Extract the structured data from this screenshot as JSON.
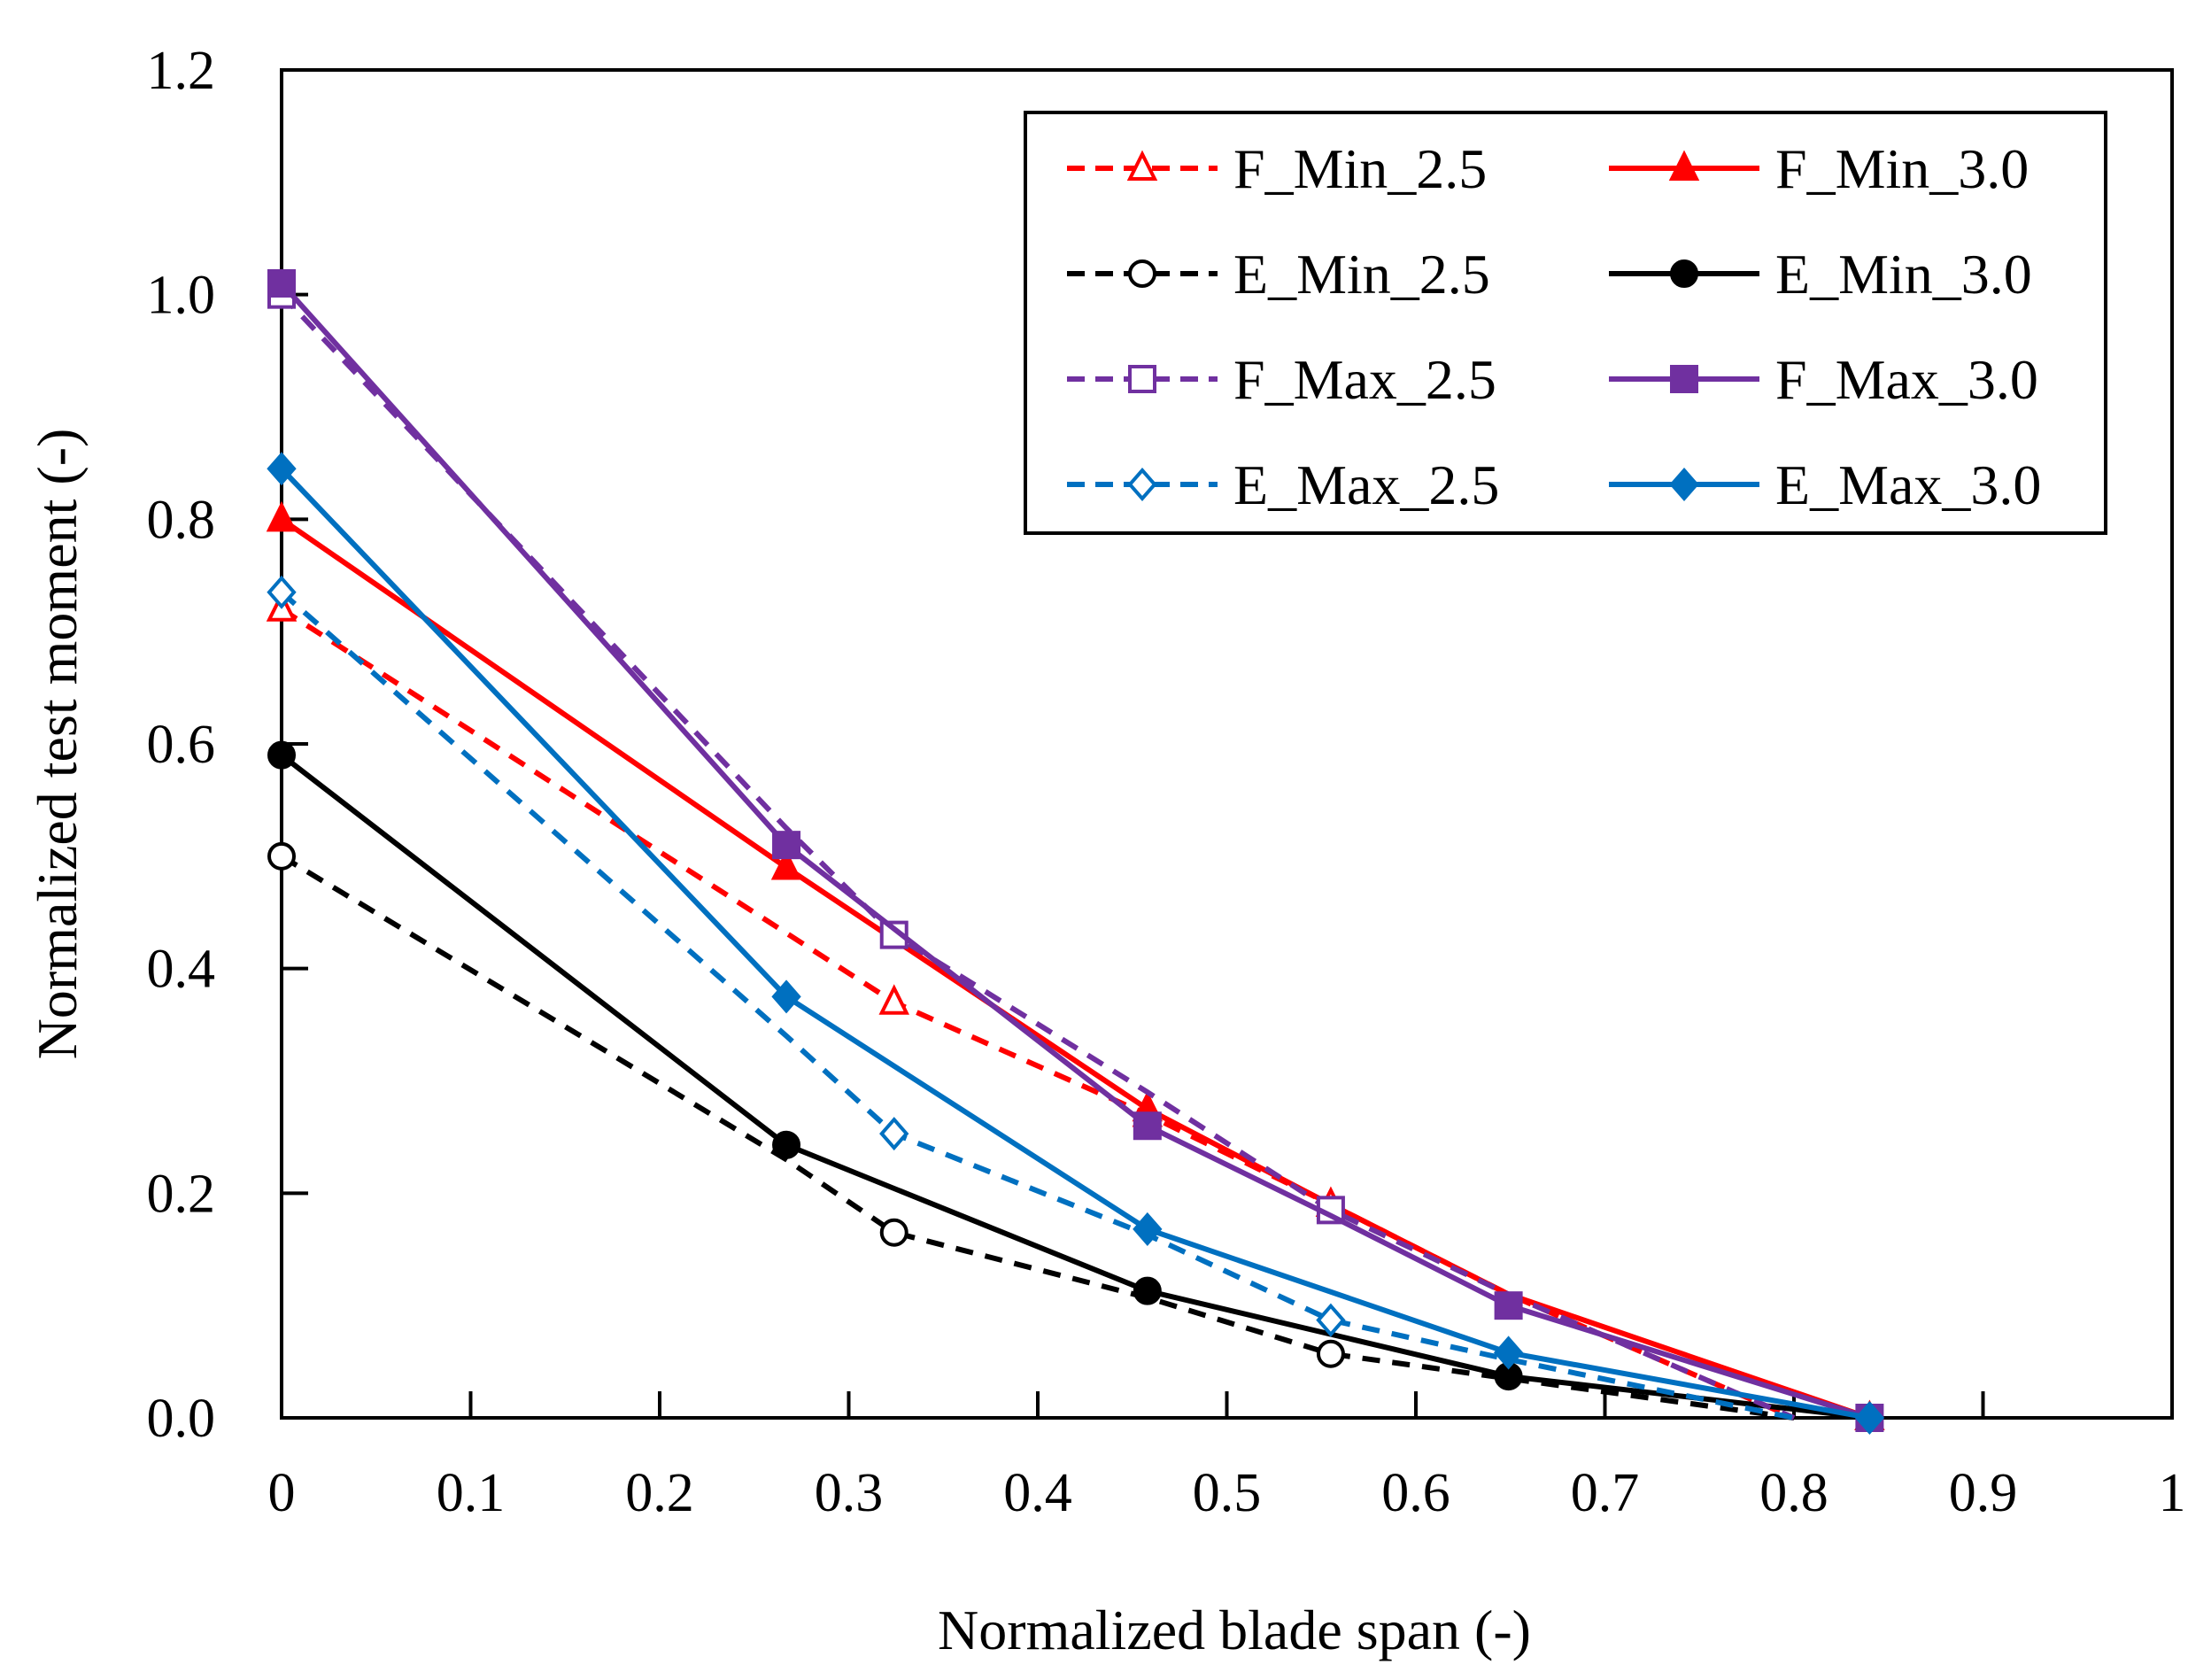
{
  "chart_data": {
    "type": "line",
    "title": "",
    "xlabel": "Normalized blade span (-)",
    "ylabel": "Normalized test moment (-)",
    "xlim": [
      0,
      1
    ],
    "ylim": [
      0,
      1.2
    ],
    "xticks": [
      "0",
      "0.1",
      "0.2",
      "0.3",
      "0.4",
      "0.5",
      "0.6",
      "0.7",
      "0.8",
      "0.9",
      "1"
    ],
    "yticks": [
      "0.0",
      "0.2",
      "0.4",
      "0.6",
      "0.8",
      "1.0",
      "1.2"
    ],
    "grid": false,
    "legend_position": "top-right",
    "series": [
      {
        "name": "F_Min_2.5",
        "color": "#ff0000",
        "dashed": true,
        "marker": "triangle-open",
        "points": [
          {
            "x": 0,
            "y": 0.72,
            "m": true
          },
          {
            "x": 0.324,
            "y": 0.37,
            "m": true
          },
          {
            "x": 0.458,
            "y": 0.27,
            "m": true
          },
          {
            "x": 0.555,
            "y": 0.19,
            "m": true
          },
          {
            "x": 0.649,
            "y": 0.11,
            "m": false
          },
          {
            "x": 0.8,
            "y": 0.0,
            "m": false
          }
        ]
      },
      {
        "name": "F_Min_3.0",
        "color": "#ff0000",
        "dashed": false,
        "marker": "triangle-filled",
        "points": [
          {
            "x": 0,
            "y": 0.8,
            "m": true
          },
          {
            "x": 0.267,
            "y": 0.49,
            "m": true
          },
          {
            "x": 0.458,
            "y": 0.275,
            "m": true
          },
          {
            "x": 0.555,
            "y": 0.19,
            "m": false
          },
          {
            "x": 0.649,
            "y": 0.11,
            "m": false
          },
          {
            "x": 0.84,
            "y": 0.0,
            "m": true
          }
        ]
      },
      {
        "name": "E_Min_2.5",
        "color": "#000000",
        "dashed": true,
        "marker": "circle-open",
        "points": [
          {
            "x": 0,
            "y": 0.5,
            "m": true
          },
          {
            "x": 0.267,
            "y": 0.23,
            "m": false
          },
          {
            "x": 0.324,
            "y": 0.165,
            "m": true
          },
          {
            "x": 0.458,
            "y": 0.107,
            "m": false
          },
          {
            "x": 0.555,
            "y": 0.057,
            "m": true
          },
          {
            "x": 0.649,
            "y": 0.035,
            "m": false
          },
          {
            "x": 0.8,
            "y": 0.0,
            "m": false
          }
        ]
      },
      {
        "name": "E_Min_3.0",
        "color": "#000000",
        "dashed": false,
        "marker": "circle-filled",
        "points": [
          {
            "x": 0,
            "y": 0.59,
            "m": true
          },
          {
            "x": 0.267,
            "y": 0.243,
            "m": true
          },
          {
            "x": 0.458,
            "y": 0.113,
            "m": true
          },
          {
            "x": 0.649,
            "y": 0.037,
            "m": true
          },
          {
            "x": 0.84,
            "y": 0.0,
            "m": true
          }
        ]
      },
      {
        "name": "F_Max_2.5",
        "color": "#7030a0",
        "dashed": true,
        "marker": "square-open",
        "points": [
          {
            "x": 0,
            "y": 1.0,
            "m": true
          },
          {
            "x": 0.267,
            "y": 0.525,
            "m": false
          },
          {
            "x": 0.324,
            "y": 0.43,
            "m": true
          },
          {
            "x": 0.458,
            "y": 0.29,
            "m": false
          },
          {
            "x": 0.555,
            "y": 0.185,
            "m": true
          },
          {
            "x": 0.649,
            "y": 0.11,
            "m": false
          },
          {
            "x": 0.8,
            "y": 0.0,
            "m": false
          }
        ]
      },
      {
        "name": "F_Max_3.0",
        "color": "#7030a0",
        "dashed": false,
        "marker": "square-filled",
        "points": [
          {
            "x": 0,
            "y": 1.01,
            "m": true
          },
          {
            "x": 0.267,
            "y": 0.51,
            "m": true
          },
          {
            "x": 0.458,
            "y": 0.26,
            "m": true
          },
          {
            "x": 0.555,
            "y": 0.18,
            "m": false
          },
          {
            "x": 0.649,
            "y": 0.1,
            "m": true
          },
          {
            "x": 0.84,
            "y": 0.0,
            "m": true
          }
        ]
      },
      {
        "name": "E_Max_2.5",
        "color": "#0070c0",
        "dashed": true,
        "marker": "diamond-open",
        "points": [
          {
            "x": 0,
            "y": 0.735,
            "m": true
          },
          {
            "x": 0.267,
            "y": 0.34,
            "m": false
          },
          {
            "x": 0.324,
            "y": 0.253,
            "m": true
          },
          {
            "x": 0.458,
            "y": 0.163,
            "m": false
          },
          {
            "x": 0.555,
            "y": 0.087,
            "m": true
          },
          {
            "x": 0.649,
            "y": 0.052,
            "m": false
          },
          {
            "x": 0.8,
            "y": 0.0,
            "m": false
          }
        ]
      },
      {
        "name": "E_Max_3.0",
        "color": "#0070c0",
        "dashed": false,
        "marker": "diamond-filled",
        "points": [
          {
            "x": 0,
            "y": 0.845,
            "m": true
          },
          {
            "x": 0.267,
            "y": 0.375,
            "m": true
          },
          {
            "x": 0.458,
            "y": 0.168,
            "m": true
          },
          {
            "x": 0.649,
            "y": 0.058,
            "m": true
          },
          {
            "x": 0.84,
            "y": 0.0,
            "m": true
          }
        ]
      }
    ]
  }
}
